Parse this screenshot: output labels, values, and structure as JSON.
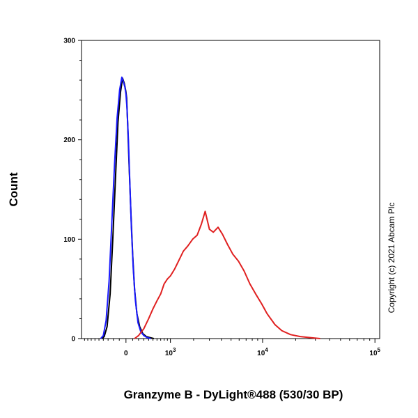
{
  "chart_data": {
    "type": "line",
    "title": "",
    "xlabel": "Granzyme B - DyLight®488 (530/30 BP)",
    "ylabel": "Count",
    "ylim": [
      0,
      300
    ],
    "y_ticks": [
      0,
      100,
      200,
      300
    ],
    "y_tick_labels": [
      "0",
      "100",
      "200",
      "300"
    ],
    "x_scale": "biexponential",
    "x_ticks": [
      {
        "value": 0,
        "base": "0",
        "exp": ""
      },
      {
        "value": 1000,
        "base": "10",
        "exp": "3"
      },
      {
        "value": 10000,
        "base": "10",
        "exp": "4"
      },
      {
        "value": 100000,
        "base": "10",
        "exp": "5"
      }
    ],
    "grid": false,
    "series": [
      {
        "color": "#000000",
        "x": [
          -430,
          -380,
          -320,
          -260,
          -210,
          -160,
          -120,
          -80,
          -50,
          -25,
          -10,
          0,
          10,
          25,
          45,
          70,
          100,
          130,
          170,
          220,
          280,
          350,
          430,
          520
        ],
        "y": [
          0,
          2,
          12,
          45,
          100,
          165,
          218,
          248,
          262,
          257,
          252,
          248,
          242,
          215,
          175,
          130,
          85,
          50,
          25,
          12,
          5,
          2,
          1,
          0
        ]
      },
      {
        "color": "#1a1aff",
        "x": [
          -460,
          -400,
          -340,
          -280,
          -230,
          -180,
          -135,
          -95,
          -60,
          -35,
          -15,
          0,
          15,
          35,
          55,
          80,
          110,
          145,
          190,
          240,
          300,
          370,
          450
        ],
        "y": [
          0,
          3,
          18,
          58,
          115,
          175,
          222,
          250,
          263,
          258,
          253,
          246,
          232,
          200,
          158,
          112,
          70,
          38,
          16,
          7,
          3,
          1,
          0
        ]
      },
      {
        "color": "#e02020",
        "x": [
          130,
          200,
          300,
          400,
          500,
          600,
          700,
          800,
          900,
          1000,
          1150,
          1300,
          1500,
          1700,
          1950,
          2200,
          2450,
          2700,
          3000,
          3300,
          3700,
          4100,
          4600,
          5200,
          5900,
          6700,
          7600,
          8600,
          9800,
          11000,
          13000,
          15000,
          18000,
          22000,
          27000,
          33000
        ],
        "y": [
          0,
          3,
          10,
          20,
          30,
          38,
          45,
          55,
          60,
          63,
          70,
          78,
          88,
          93,
          100,
          104,
          115,
          128,
          110,
          107,
          112,
          105,
          95,
          85,
          78,
          68,
          55,
          45,
          35,
          25,
          14,
          8,
          4,
          2,
          1,
          0
        ]
      }
    ]
  },
  "copyright": "Copyright (c) 2021 Abcam Plc"
}
